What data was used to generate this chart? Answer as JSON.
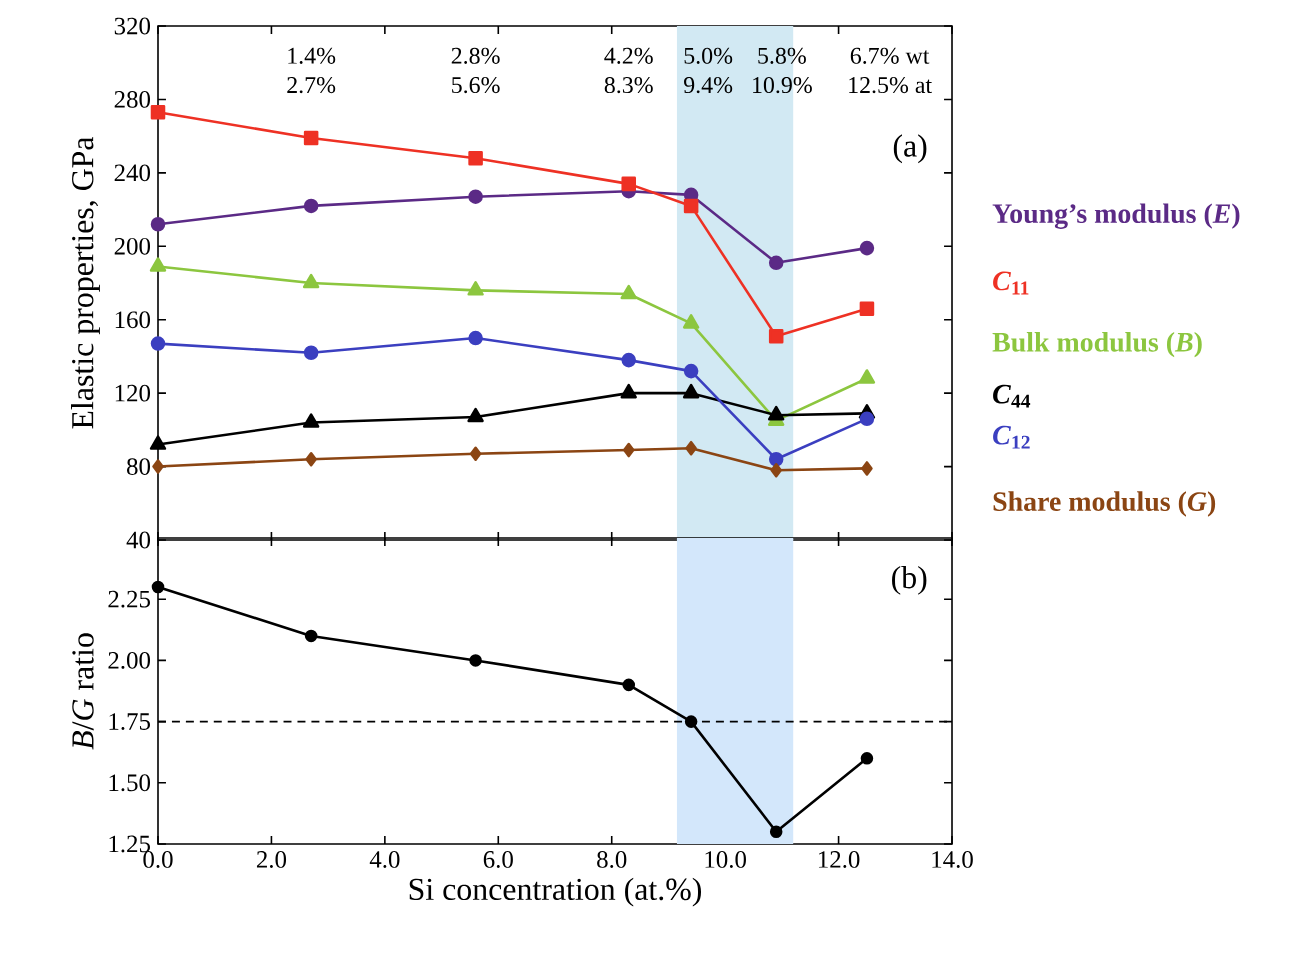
{
  "chart_data": [
    {
      "type": "line",
      "ylabel": "Elastic properties, GPa",
      "x": [
        0,
        2.7,
        5.6,
        8.3,
        9.4,
        10.9,
        12.5
      ],
      "series": [
        {
          "name": "Young’s modulus (*E*)",
          "color": "#5b2a86",
          "marker": "circle",
          "values": [
            212,
            222,
            227,
            230,
            228,
            191,
            199
          ]
        },
        {
          "name": "*C*$_{11}$",
          "color": "#ee3124",
          "marker": "square",
          "values": [
            273,
            259,
            248,
            234,
            222,
            151,
            166
          ]
        },
        {
          "name": "Bulk modulus (*B*)",
          "color": "#8cc63f",
          "marker": "triangle",
          "values": [
            189,
            180,
            176,
            174,
            158,
            105,
            128
          ]
        },
        {
          "name": "*C*$_{44}$",
          "color": "#000000",
          "marker": "triangle",
          "values": [
            92,
            104,
            107,
            120,
            120,
            108,
            109
          ]
        },
        {
          "name": "*C*$_{12}$",
          "color": "#3b3fc0",
          "marker": "circle",
          "values": [
            147,
            142,
            150,
            138,
            132,
            84,
            106
          ]
        },
        {
          "name": "Share modulus (*G*)",
          "color": "#8b4513",
          "marker": "diamond",
          "values": [
            80,
            84,
            87,
            89,
            90,
            78,
            79
          ]
        }
      ],
      "xlim": [
        0,
        14
      ],
      "xticks": [
        0,
        2,
        4,
        6,
        8,
        10,
        12,
        14
      ],
      "ylim": [
        40,
        320
      ],
      "yticks": [
        40,
        80,
        120,
        160,
        200,
        240,
        280,
        320
      ],
      "tick_labels": "y",
      "legend": "right",
      "bands": [
        {
          "axis": "x",
          "from": 9.15,
          "to": 11.2,
          "color": "#d2e9f3"
        }
      ],
      "annotations": [
        "1.4%",
        "2.7%",
        "2.8%",
        "5.6%",
        "4.2%",
        "8.3%",
        "5.0%",
        "9.4%",
        "5.8%",
        "10.9%",
        "6.7% wt",
        "12.5% at",
        "(a)"
      ]
    },
    {
      "type": "line",
      "xlabel": "Si concentration (at.%)",
      "ylabel": "*B*/*G* ratio",
      "x": [
        0,
        2.7,
        5.6,
        8.3,
        9.4,
        10.9,
        12.5
      ],
      "series": [
        {
          "color": "#000000",
          "marker": "circle",
          "values": [
            2.3,
            2.1,
            2.0,
            1.9,
            1.75,
            1.3,
            1.6
          ]
        }
      ],
      "xlim": [
        0,
        14
      ],
      "xticks": [
        {
          "value": 0,
          "label": "0.0"
        },
        {
          "value": 2,
          "label": "2.0"
        },
        {
          "value": 4,
          "label": "4.0"
        },
        {
          "value": 6,
          "label": "6.0"
        },
        {
          "value": 8,
          "label": "8.0"
        },
        {
          "value": 10,
          "label": "10.0"
        },
        {
          "value": 12,
          "label": "12.0"
        },
        {
          "value": 14,
          "label": "14.0"
        }
      ],
      "ylim": [
        1.25,
        2.5
      ],
      "yticks": [
        {
          "value": 1.25,
          "label": "1.25"
        },
        {
          "value": 1.5,
          "label": "1.50"
        },
        {
          "value": 1.75,
          "label": "1.75"
        },
        {
          "value": 2.0,
          "label": "2.00"
        },
        {
          "value": 2.25,
          "label": "2.25"
        }
      ],
      "ref_lines": [
        {
          "axis": "y",
          "value": 1.75,
          "line_style": "dashed"
        }
      ],
      "bands": [
        {
          "axis": "x",
          "from": 9.15,
          "to": 11.2,
          "color": "#d3e7fb"
        }
      ],
      "annotations": [
        "(b)"
      ]
    }
  ]
}
